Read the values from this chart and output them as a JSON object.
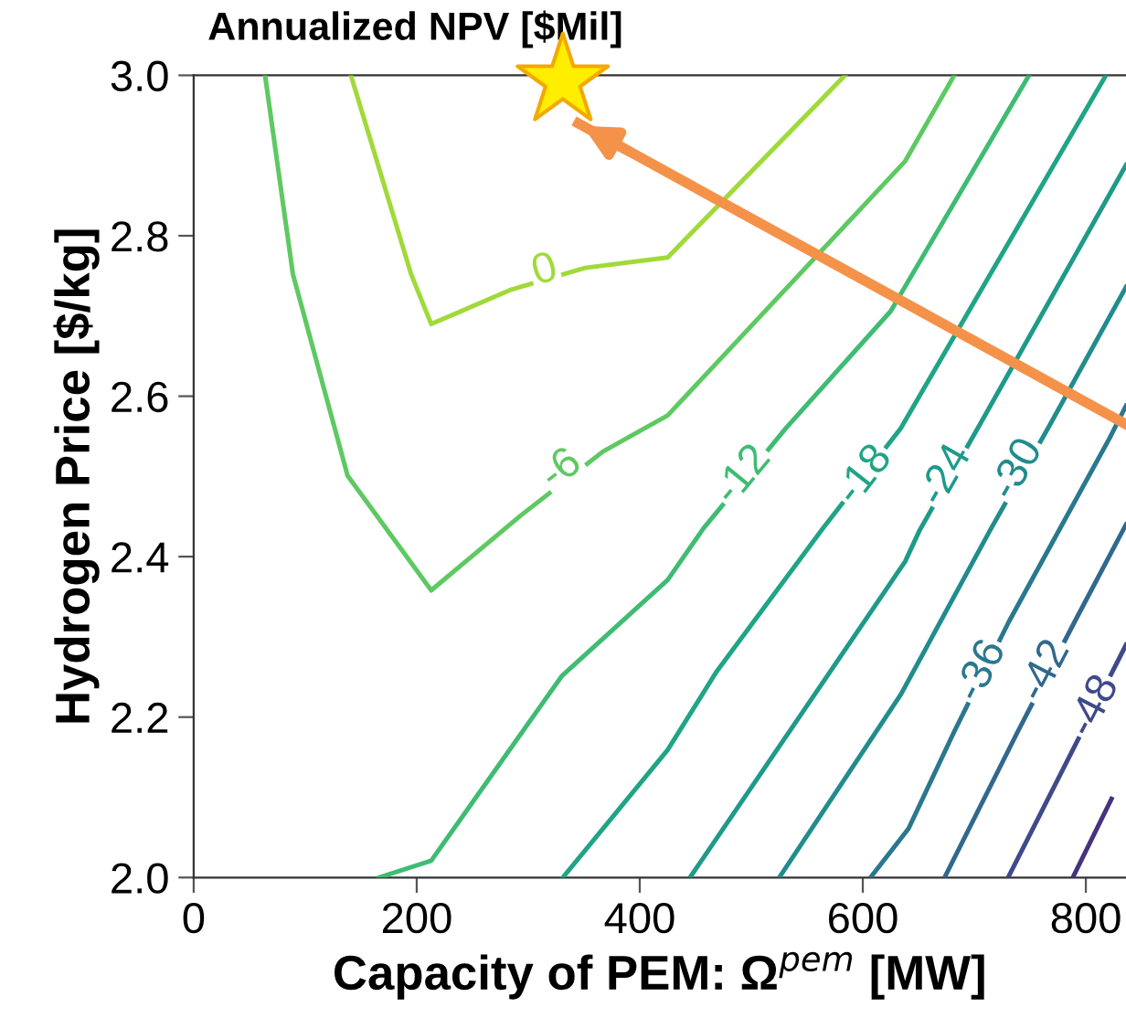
{
  "chart_data": {
    "type": "line",
    "title": "Annualized NPV [$Mil]",
    "xlabel": "Capacity of PEM: Ω$^{pem}$ [MW]",
    "ylabel": "Hydrogen Price [$/kg]",
    "xlim": [
      0,
      836
    ],
    "xticks": [
      0,
      200,
      400,
      600,
      800
    ],
    "ylim": [
      2.0,
      3.0
    ],
    "yticks": [
      {
        "value": 2.0,
        "label": "2.0"
      },
      {
        "value": 2.2,
        "label": "2.2"
      },
      {
        "value": 2.4,
        "label": "2.4"
      },
      {
        "value": 2.6,
        "label": "2.6"
      },
      {
        "value": 2.8,
        "label": "2.8"
      },
      {
        "value": 3.0,
        "label": "3.0"
      }
    ],
    "grid": false,
    "legend": false,
    "marker": "none",
    "series": [
      {
        "color": "#a0da39",
        "x": [
          141,
          195,
          213,
          285,
          351,
          425,
          584
        ],
        "values": [
          3.0,
          2.752,
          2.69,
          2.733,
          2.76,
          2.773,
          3.0
        ]
      },
      {
        "color": "#5ec962",
        "x": [
          64,
          89,
          138,
          213,
          293,
          367,
          425,
          638,
          682
        ],
        "values": [
          3.0,
          2.752,
          2.501,
          2.358,
          2.451,
          2.531,
          2.576,
          2.893,
          3.0
        ]
      },
      {
        "color": "#3fbc73",
        "x": [
          166,
          213,
          330,
          425,
          457,
          531,
          625,
          749
        ],
        "values": [
          2.0,
          2.021,
          2.251,
          2.371,
          2.435,
          2.56,
          2.706,
          3.0
        ]
      },
      {
        "color": "#20a486",
        "x": [
          331,
          425,
          469,
          564,
          634,
          818
        ],
        "values": [
          2.0,
          2.159,
          2.257,
          2.435,
          2.56,
          3.0
        ]
      },
      {
        "color": "#1f9a8a",
        "x": [
          446,
          520,
          638,
          651,
          703,
          836
        ],
        "values": [
          2.002,
          2.153,
          2.394,
          2.433,
          2.56,
          2.888
        ]
      },
      {
        "color": "#228c8d",
        "x": [
          526,
          634,
          715,
          766,
          836
        ],
        "values": [
          2.002,
          2.228,
          2.435,
          2.56,
          2.736
        ]
      },
      {
        "color": "#2a788e",
        "x": [
          608,
          641,
          682,
          731,
          821,
          836
        ],
        "values": [
          2.002,
          2.061,
          2.182,
          2.319,
          2.547,
          2.588
        ]
      },
      {
        "color": "#31688e",
        "x": [
          674,
          739,
          790,
          836
        ],
        "values": [
          2.002,
          2.182,
          2.319,
          2.44
        ]
      },
      {
        "color": "#3e4a89",
        "x": [
          731,
          836
        ],
        "values": [
          2.002,
          2.29
        ]
      },
      {
        "color": "#46327e",
        "x": [
          789,
          823
        ],
        "values": [
          2.002,
          2.098
        ]
      },
      {
        "type": "line",
        "color": "#f5924a",
        "x": [
          836,
          345
        ],
        "values": [
          2.565,
          2.94
        ]
      },
      {
        "type": "scatter",
        "marker": "star",
        "color": "#ffee00",
        "x": [
          331
        ],
        "values": [
          2.993
        ]
      }
    ],
    "annotations": [
      {
        "text": "0",
        "x": 315,
        "y": 2.756
      },
      {
        "text": "-6",
        "x": 330,
        "y": 2.508
      },
      {
        "text": "-12",
        "x": 493,
        "y": 2.501
      },
      {
        "text": "-18",
        "x": 602,
        "y": 2.501
      },
      {
        "text": "-24",
        "x": 675,
        "y": 2.501
      },
      {
        "text": "-30",
        "x": 739,
        "y": 2.508
      },
      {
        "text": "-36",
        "x": 707,
        "y": 2.257
      },
      {
        "text": "-42",
        "x": 764,
        "y": 2.257
      },
      {
        "text": "-48",
        "x": 808,
        "y": 2.213
      }
    ]
  }
}
